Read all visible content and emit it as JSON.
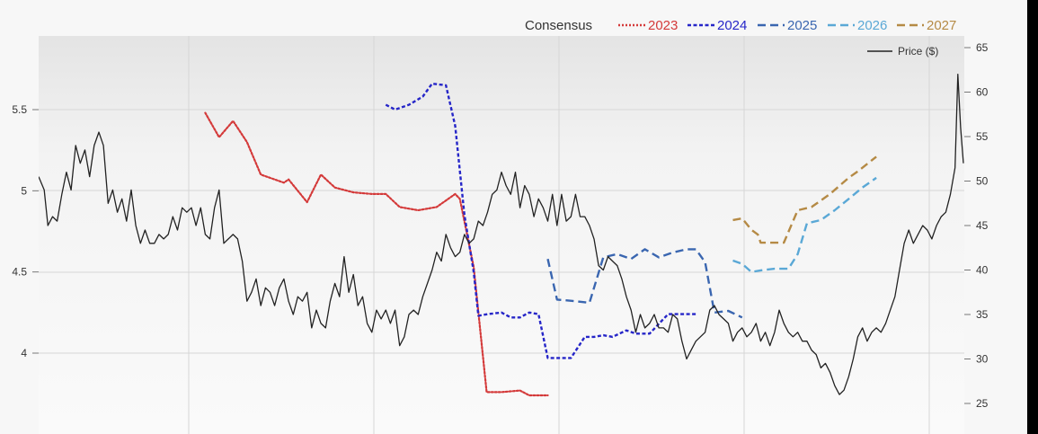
{
  "chart_data": {
    "type": "line",
    "legend": {
      "title": "Consensus",
      "entries": [
        {
          "label": "2023",
          "color": "#d43a3a",
          "dash": "dotted"
        },
        {
          "label": "2024",
          "color": "#2626c8",
          "dash": "short-dash"
        },
        {
          "label": "2025",
          "color": "#3a66b0",
          "dash": "dash"
        },
        {
          "label": "2026",
          "color": "#5aa8d6",
          "dash": "dash"
        },
        {
          "label": "2027",
          "color": "#b58a45",
          "dash": "dash"
        }
      ],
      "price_label": "Price ($)",
      "placement": "top-right"
    },
    "left_axis": {
      "ticks": [
        "5.5",
        "5",
        "4.5",
        "4"
      ],
      "range": [
        3.68,
        5.83
      ]
    },
    "right_axis": {
      "ticks": [
        "65",
        "60",
        "55",
        "50",
        "45",
        "40",
        "35",
        "30",
        "25"
      ],
      "range": [
        22,
        65
      ]
    },
    "x_range": [
      0,
      100
    ],
    "grid": true,
    "series": [
      {
        "name": "2023",
        "axis": "left",
        "color": "#d43a3a",
        "dash": "dotted",
        "points": [
          [
            18,
            5.48
          ],
          [
            19.5,
            5.33
          ],
          [
            21,
            5.43
          ],
          [
            22.5,
            5.3
          ],
          [
            24,
            5.1
          ],
          [
            26.5,
            5.05
          ],
          [
            27,
            5.07
          ],
          [
            29,
            4.93
          ],
          [
            30.5,
            5.1
          ],
          [
            32,
            5.02
          ],
          [
            34,
            4.99
          ],
          [
            36,
            4.98
          ],
          [
            37.5,
            4.98
          ],
          [
            39,
            4.9
          ],
          [
            41,
            4.88
          ],
          [
            43,
            4.9
          ],
          [
            45,
            4.98
          ],
          [
            45.5,
            4.95
          ],
          [
            47,
            4.53
          ],
          [
            48.4,
            3.76
          ],
          [
            50,
            3.76
          ],
          [
            52,
            3.77
          ],
          [
            53,
            3.74
          ],
          [
            55,
            3.74
          ]
        ]
      },
      {
        "name": "2024",
        "axis": "left",
        "color": "#2626c8",
        "dash": "short-dash",
        "points": [
          [
            37.5,
            5.53
          ],
          [
            38.5,
            5.5
          ],
          [
            40,
            5.53
          ],
          [
            41.5,
            5.58
          ],
          [
            42.5,
            5.66
          ],
          [
            44,
            5.65
          ],
          [
            45,
            5.4
          ],
          [
            46,
            4.85
          ],
          [
            47,
            4.5
          ],
          [
            47.5,
            4.23
          ],
          [
            48.5,
            4.24
          ],
          [
            50,
            4.25
          ],
          [
            51,
            4.22
          ],
          [
            52,
            4.22
          ],
          [
            53,
            4.25
          ],
          [
            54,
            4.24
          ],
          [
            55,
            3.97
          ],
          [
            56.5,
            3.97
          ],
          [
            57.5,
            3.97
          ],
          [
            59,
            4.1
          ],
          [
            60,
            4.1
          ],
          [
            61,
            4.11
          ],
          [
            62,
            4.1
          ],
          [
            63.5,
            4.14
          ],
          [
            64.5,
            4.12
          ],
          [
            66,
            4.12
          ],
          [
            68,
            4.24
          ],
          [
            70,
            4.24
          ],
          [
            71,
            4.24
          ]
        ]
      },
      {
        "name": "2025",
        "axis": "left",
        "color": "#3a66b0",
        "dash": "dash",
        "points": [
          [
            55,
            4.58
          ],
          [
            56,
            4.33
          ],
          [
            58,
            4.32
          ],
          [
            59.5,
            4.31
          ],
          [
            61,
            4.59
          ],
          [
            62.5,
            4.61
          ],
          [
            64,
            4.58
          ],
          [
            65.5,
            4.64
          ],
          [
            67,
            4.59
          ],
          [
            68.5,
            4.62
          ],
          [
            70,
            4.64
          ],
          [
            71,
            4.64
          ],
          [
            72,
            4.56
          ],
          [
            73,
            4.25
          ],
          [
            74.5,
            4.26
          ],
          [
            76,
            4.22
          ]
        ]
      },
      {
        "name": "2026",
        "axis": "left",
        "color": "#5aa8d6",
        "dash": "dash",
        "points": [
          [
            75,
            4.57
          ],
          [
            76,
            4.55
          ],
          [
            77,
            4.5
          ],
          [
            78,
            4.51
          ],
          [
            79.5,
            4.52
          ],
          [
            81,
            4.52
          ],
          [
            82,
            4.61
          ],
          [
            83,
            4.8
          ],
          [
            84.5,
            4.82
          ],
          [
            86,
            4.88
          ],
          [
            87.5,
            4.95
          ],
          [
            89,
            5.02
          ],
          [
            90.5,
            5.08
          ]
        ]
      },
      {
        "name": "2027",
        "axis": "left",
        "color": "#b58a45",
        "dash": "dash",
        "points": [
          [
            75,
            4.82
          ],
          [
            76,
            4.83
          ],
          [
            77,
            4.76
          ],
          [
            77.7,
            4.73
          ],
          [
            78,
            4.68
          ],
          [
            80.5,
            4.68
          ],
          [
            82,
            4.88
          ],
          [
            83.5,
            4.9
          ],
          [
            85.5,
            4.98
          ],
          [
            87.5,
            5.08
          ],
          [
            88.5,
            5.12
          ],
          [
            90.5,
            5.21
          ]
        ]
      },
      {
        "name": "Price ($)",
        "axis": "right",
        "color": "#222222",
        "dash": "solid",
        "points": [
          [
            0,
            50.5
          ],
          [
            0.6,
            49
          ],
          [
            1,
            45
          ],
          [
            1.5,
            46
          ],
          [
            2,
            45.5
          ],
          [
            2.5,
            48.5
          ],
          [
            3,
            51
          ],
          [
            3.5,
            49
          ],
          [
            4,
            54
          ],
          [
            4.5,
            52
          ],
          [
            5,
            53.5
          ],
          [
            5.5,
            50.5
          ],
          [
            6,
            54
          ],
          [
            6.5,
            55.5
          ],
          [
            7,
            54
          ],
          [
            7.5,
            47.5
          ],
          [
            8,
            49
          ],
          [
            8.5,
            46.5
          ],
          [
            9,
            48
          ],
          [
            9.5,
            45.5
          ],
          [
            10,
            49
          ],
          [
            10.5,
            45
          ],
          [
            11,
            43
          ],
          [
            11.5,
            44.5
          ],
          [
            12,
            43
          ],
          [
            12.5,
            43
          ],
          [
            13,
            44
          ],
          [
            13.5,
            43.5
          ],
          [
            14,
            44
          ],
          [
            14.5,
            46
          ],
          [
            15,
            44.5
          ],
          [
            15.5,
            47
          ],
          [
            16,
            46.5
          ],
          [
            16.5,
            47
          ],
          [
            17,
            45
          ],
          [
            17.5,
            47
          ],
          [
            18,
            44
          ],
          [
            18.5,
            43.5
          ],
          [
            19,
            47
          ],
          [
            19.5,
            49
          ],
          [
            20,
            43
          ],
          [
            20.5,
            43.5
          ],
          [
            21,
            44
          ],
          [
            21.5,
            43.5
          ],
          [
            22,
            41
          ],
          [
            22.5,
            36.5
          ],
          [
            23,
            37.5
          ],
          [
            23.5,
            39
          ],
          [
            24,
            36
          ],
          [
            24.5,
            38
          ],
          [
            25,
            37.5
          ],
          [
            25.5,
            36
          ],
          [
            26,
            38
          ],
          [
            26.5,
            39
          ],
          [
            27,
            36.5
          ],
          [
            27.5,
            35
          ],
          [
            28,
            37
          ],
          [
            28.5,
            36.5
          ],
          [
            29,
            37.5
          ],
          [
            29.5,
            33.5
          ],
          [
            30,
            35.5
          ],
          [
            30.5,
            34
          ],
          [
            31,
            33.5
          ],
          [
            31.5,
            36.5
          ],
          [
            32,
            38.5
          ],
          [
            32.5,
            37
          ],
          [
            33,
            41.5
          ],
          [
            33.5,
            37.5
          ],
          [
            34,
            39.5
          ],
          [
            34.5,
            36
          ],
          [
            35,
            37
          ],
          [
            35.5,
            34
          ],
          [
            36,
            33
          ],
          [
            36.5,
            35.5
          ],
          [
            37,
            34.5
          ],
          [
            37.5,
            35.5
          ],
          [
            38,
            34
          ],
          [
            38.5,
            35.5
          ],
          [
            39,
            31.5
          ],
          [
            39.5,
            32.5
          ],
          [
            40,
            35
          ],
          [
            40.5,
            35.5
          ],
          [
            41,
            35
          ],
          [
            41.5,
            37
          ],
          [
            42,
            38.5
          ],
          [
            42.5,
            40
          ],
          [
            43,
            42
          ],
          [
            43.5,
            41
          ],
          [
            44,
            44
          ],
          [
            44.5,
            42.5
          ],
          [
            45,
            41.5
          ],
          [
            45.5,
            42
          ],
          [
            46,
            44
          ],
          [
            46.5,
            43
          ],
          [
            47,
            43.5
          ],
          [
            47.5,
            45.5
          ],
          [
            48,
            45
          ],
          [
            48.5,
            46.5
          ],
          [
            49,
            48.5
          ],
          [
            49.5,
            49
          ],
          [
            50,
            51
          ],
          [
            50.5,
            49.5
          ],
          [
            51,
            48.5
          ],
          [
            51.5,
            51
          ],
          [
            52,
            47
          ],
          [
            52.5,
            49.5
          ],
          [
            53,
            48.5
          ],
          [
            53.5,
            46
          ],
          [
            54,
            48
          ],
          [
            54.5,
            47
          ],
          [
            55,
            45.5
          ],
          [
            55.5,
            48.5
          ],
          [
            56,
            45
          ],
          [
            56.5,
            48.5
          ],
          [
            57,
            45.5
          ],
          [
            57.5,
            46
          ],
          [
            58,
            48.5
          ],
          [
            58.5,
            46
          ],
          [
            59,
            46
          ],
          [
            59.5,
            45
          ],
          [
            60,
            43.5
          ],
          [
            60.5,
            40.5
          ],
          [
            61,
            40
          ],
          [
            61.5,
            41.5
          ],
          [
            62,
            41
          ],
          [
            62.5,
            40.5
          ],
          [
            63,
            39
          ],
          [
            63.5,
            37
          ],
          [
            64,
            35.5
          ],
          [
            64.5,
            33
          ],
          [
            65,
            35
          ],
          [
            65.5,
            33.5
          ],
          [
            66,
            34
          ],
          [
            66.5,
            35
          ],
          [
            67,
            33.5
          ],
          [
            67.5,
            33.5
          ],
          [
            68,
            33
          ],
          [
            68.5,
            35
          ],
          [
            69,
            34.5
          ],
          [
            69.5,
            32
          ],
          [
            70,
            30
          ],
          [
            70.5,
            31
          ],
          [
            71,
            32
          ],
          [
            71.5,
            32.5
          ],
          [
            72,
            33
          ],
          [
            72.5,
            35.5
          ],
          [
            73,
            36
          ],
          [
            73.5,
            35
          ],
          [
            74,
            34.5
          ],
          [
            74.5,
            34
          ],
          [
            75,
            32
          ],
          [
            75.5,
            33
          ],
          [
            76,
            33.5
          ],
          [
            76.5,
            32.5
          ],
          [
            77,
            33
          ],
          [
            77.5,
            34
          ],
          [
            78,
            32
          ],
          [
            78.5,
            33
          ],
          [
            79,
            31.5
          ],
          [
            79.5,
            33
          ],
          [
            80,
            35.5
          ],
          [
            80.5,
            34
          ],
          [
            81,
            33
          ],
          [
            81.5,
            32.5
          ],
          [
            82,
            33
          ],
          [
            82.5,
            32
          ],
          [
            83,
            32
          ],
          [
            83.5,
            31
          ],
          [
            84,
            30.5
          ],
          [
            84.5,
            29
          ],
          [
            85,
            29.5
          ],
          [
            85.5,
            28.5
          ],
          [
            86,
            27
          ],
          [
            86.5,
            26
          ],
          [
            87,
            26.5
          ],
          [
            87.5,
            28
          ],
          [
            88,
            30
          ],
          [
            88.5,
            32.5
          ],
          [
            89,
            33.5
          ],
          [
            89.5,
            32
          ],
          [
            90,
            33
          ],
          [
            90.5,
            33.5
          ],
          [
            91,
            33
          ],
          [
            91.5,
            34
          ],
          [
            92,
            35.5
          ],
          [
            92.5,
            37
          ],
          [
            93,
            40
          ],
          [
            93.5,
            43
          ],
          [
            94,
            44.5
          ],
          [
            94.5,
            43
          ],
          [
            95,
            44
          ],
          [
            95.5,
            45
          ],
          [
            96,
            44.5
          ],
          [
            96.5,
            43.5
          ],
          [
            97,
            45
          ],
          [
            97.5,
            46
          ],
          [
            98,
            46.5
          ],
          [
            98.5,
            48.5
          ],
          [
            99,
            51.5
          ],
          [
            99.3,
            62
          ],
          [
            99.6,
            56
          ],
          [
            99.9,
            52
          ]
        ]
      }
    ]
  }
}
